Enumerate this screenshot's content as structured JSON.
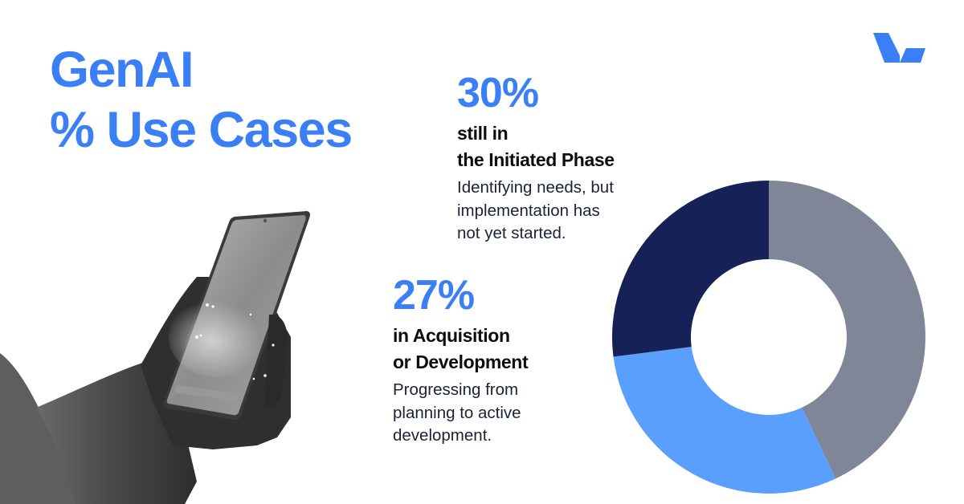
{
  "title": {
    "line1": "GenAI",
    "line2": "% Use Cases",
    "color": "#3a7ff6"
  },
  "logo": {
    "icon": "brand-v-check-icon",
    "color": "#3a7ff6"
  },
  "stats": [
    {
      "percent": "30%",
      "headline_line1": "still in",
      "headline_line2": "the Initiated Phase",
      "description_line1": "Identifying needs, but",
      "description_line2": "implementation has",
      "description_line3": "not yet started."
    },
    {
      "percent": "27%",
      "headline_line1": "in Acquisition",
      "headline_line2": "or Development",
      "description_line1": "Progressing from",
      "description_line2": "planning to active",
      "description_line3": "development."
    }
  ],
  "colors": {
    "accent_blue": "#3a7ff6",
    "segment_gray": "#7e8698",
    "segment_light_blue": "#5a9ffd",
    "segment_navy": "#162157",
    "headline_text": "#0d0d0d",
    "description_text": "#1b2236"
  },
  "chart_data": {
    "type": "pie",
    "subtype": "donut",
    "title": "GenAI % Use Cases",
    "start_angle": "12 o'clock, clockwise",
    "categories": [
      "Other (unlabeled)",
      "Initiated Phase",
      "Acquisition or Development"
    ],
    "values": [
      43,
      30,
      27
    ],
    "colors": [
      "#7e8698",
      "#5a9ffd",
      "#162157"
    ],
    "labels_shown": [
      "30% still in the Initiated Phase",
      "27% in Acquisition or Development"
    ],
    "legend": "none (text annotations at left)",
    "inner_radius_ratio": 0.5
  }
}
